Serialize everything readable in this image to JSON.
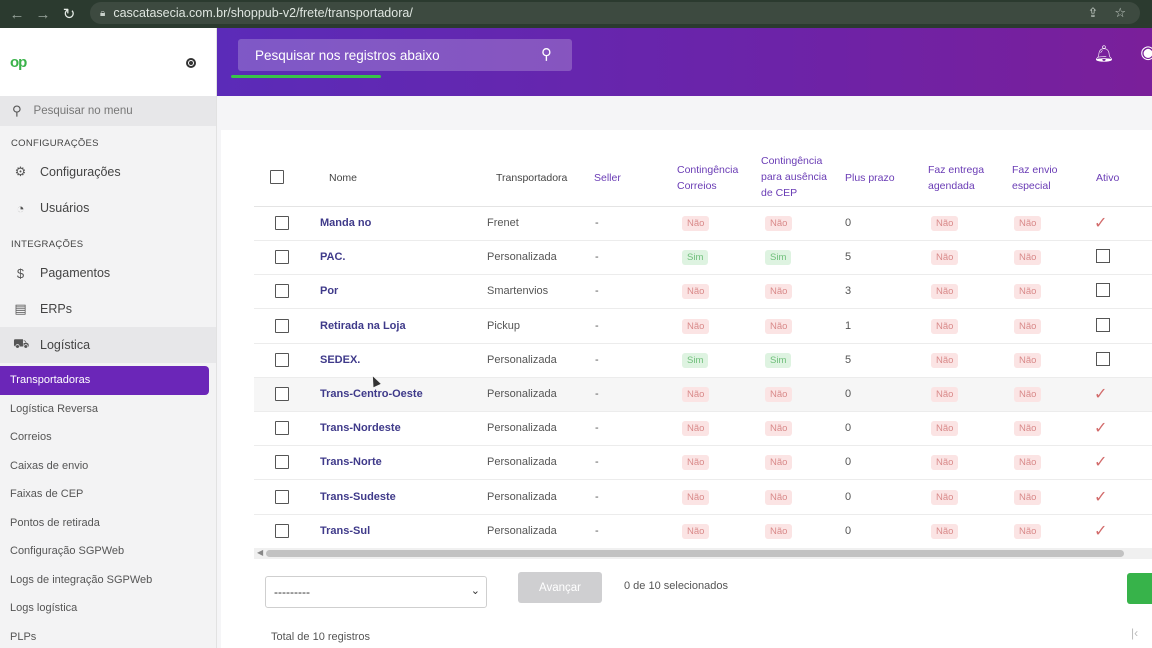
{
  "browser": {
    "back": "←",
    "forward": "→",
    "reload": "↻",
    "url": "cascatasecia.com.br/shoppub-v2/frete/transportadora/",
    "share_icon": "share-icon",
    "star_icon": "star-icon"
  },
  "sidebar": {
    "menu_search_placeholder": "Pesquisar no menu",
    "sections": {
      "config_title": "CONFIGURAÇÕES",
      "integ_title": "INTEGRAÇÕES"
    },
    "config_items": [
      {
        "label": "Configurações",
        "icon": "gear-icon"
      },
      {
        "label": "Usuários",
        "icon": "user-circle-icon"
      }
    ],
    "integ_items": [
      {
        "label": "Pagamentos",
        "icon": "dollar-icon"
      },
      {
        "label": "ERPs",
        "icon": "card-icon"
      },
      {
        "label": "Logística",
        "icon": "truck-icon"
      }
    ],
    "sub_items": [
      "Transportadoras",
      "Logística Reversa",
      "Correios",
      "Caixas de envio",
      "Faixas de CEP",
      "Pontos de retirada",
      "Configuração SGPWeb",
      "Logs de integração SGPWeb",
      "Logs logística",
      "PLPs"
    ],
    "active_color": "#6b26b8"
  },
  "header": {
    "search_placeholder": "Pesquisar nos registros abaixo",
    "gradient_start": "#5b2bb8",
    "gradient_end": "#7a1f9a"
  },
  "table": {
    "columns": {
      "nome": "Nome",
      "transportadora": "Transportadora",
      "seller": "Seller",
      "cont_correios": "Contingência Correios",
      "cont_cep": "Contingência para ausência de CEP",
      "plus_prazo": "Plus prazo",
      "entrega_agendada": "Faz entrega agendada",
      "envio_especial": "Faz envio especial",
      "ativo": "Ativo"
    },
    "rows": [
      {
        "nome": "Manda no",
        "transportadora": "Frenet",
        "seller": "-",
        "cont_correios": "Não",
        "cont_cep": "Não",
        "plus_prazo": "0",
        "entrega": "Não",
        "especial": "Não",
        "ativo": "✓"
      },
      {
        "nome": "PAC.",
        "transportadora": "Personalizada",
        "seller": "-",
        "cont_correios": "Sim",
        "cont_cep": "Sim",
        "plus_prazo": "5",
        "entrega": "Não",
        "especial": "Não",
        "ativo": ""
      },
      {
        "nome": "Por",
        "transportadora": "Smartenvios",
        "seller": "-",
        "cont_correios": "Não",
        "cont_cep": "Não",
        "plus_prazo": "3",
        "entrega": "Não",
        "especial": "Não",
        "ativo": ""
      },
      {
        "nome": "Retirada na Loja",
        "transportadora": "Pickup",
        "seller": "-",
        "cont_correios": "Não",
        "cont_cep": "Não",
        "plus_prazo": "1",
        "entrega": "Não",
        "especial": "Não",
        "ativo": ""
      },
      {
        "nome": "SEDEX.",
        "transportadora": "Personalizada",
        "seller": "-",
        "cont_correios": "Sim",
        "cont_cep": "Sim",
        "plus_prazo": "5",
        "entrega": "Não",
        "especial": "Não",
        "ativo": ""
      },
      {
        "nome": "Trans-Centro-Oeste",
        "transportadora": "Personalizada",
        "seller": "-",
        "cont_correios": "Não",
        "cont_cep": "Não",
        "plus_prazo": "0",
        "entrega": "Não",
        "especial": "Não",
        "ativo": "✓"
      },
      {
        "nome": "Trans-Nordeste",
        "transportadora": "Personalizada",
        "seller": "-",
        "cont_correios": "Não",
        "cont_cep": "Não",
        "plus_prazo": "0",
        "entrega": "Não",
        "especial": "Não",
        "ativo": "✓"
      },
      {
        "nome": "Trans-Norte",
        "transportadora": "Personalizada",
        "seller": "-",
        "cont_correios": "Não",
        "cont_cep": "Não",
        "plus_prazo": "0",
        "entrega": "Não",
        "especial": "Não",
        "ativo": "✓"
      },
      {
        "nome": "Trans-Sudeste",
        "transportadora": "Personalizada",
        "seller": "-",
        "cont_correios": "Não",
        "cont_cep": "Não",
        "plus_prazo": "0",
        "entrega": "Não",
        "especial": "Não",
        "ativo": "✓"
      },
      {
        "nome": "Trans-Sul",
        "transportadora": "Personalizada",
        "seller": "-",
        "cont_correios": "Não",
        "cont_cep": "Não",
        "plus_prazo": "0",
        "entrega": "Não",
        "especial": "Não",
        "ativo": "✓"
      }
    ]
  },
  "footer": {
    "action_select_value": "---------",
    "advance_button": "Avançar",
    "selected_count": "0 de 10 selecionados",
    "total": "Total de 10 registros"
  }
}
